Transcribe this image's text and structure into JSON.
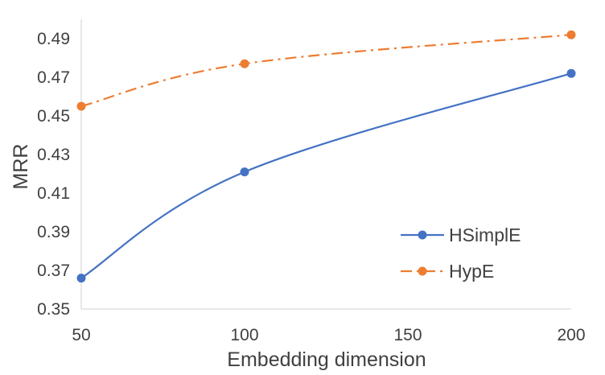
{
  "chart_data": {
    "type": "line",
    "title": "",
    "xlabel": "Embedding dimension",
    "ylabel": "MRR",
    "x": [
      50,
      100,
      200
    ],
    "xlim": [
      50,
      200
    ],
    "xticks": [
      "50",
      "100",
      "150",
      "200"
    ],
    "xtick_values": [
      50,
      100,
      150,
      200
    ],
    "ylim": [
      0.35,
      0.5
    ],
    "yticks": [
      "0.35",
      "0.37",
      "0.39",
      "0.41",
      "0.43",
      "0.45",
      "0.47",
      "0.49"
    ],
    "ytick_values": [
      0.35,
      0.37,
      0.39,
      0.41,
      0.43,
      0.45,
      0.47,
      0.49
    ],
    "grid": false,
    "legend_position": "bottom-right",
    "series": [
      {
        "name": "HSimplE",
        "values": [
          0.366,
          0.421,
          0.472
        ],
        "color": "#4472C4",
        "line_style": "solid",
        "smooth": true
      },
      {
        "name": "HypE",
        "values": [
          0.455,
          0.477,
          0.492
        ],
        "color": "#ED7D31",
        "line_style": "dash-dot",
        "smooth": true
      }
    ]
  }
}
